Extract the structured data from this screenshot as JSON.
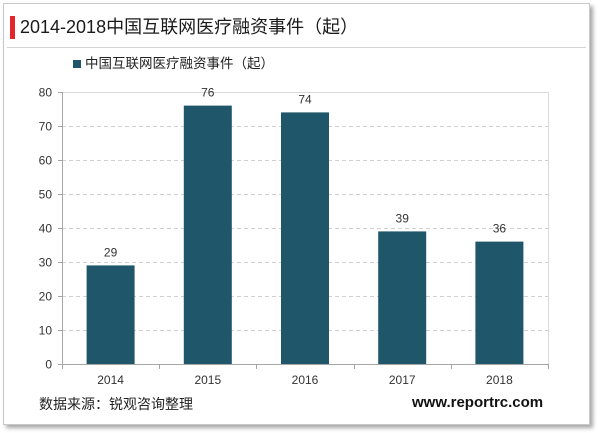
{
  "chart_data": {
    "type": "bar",
    "title": "2014-2018中国互联网医疗融资事件（起）",
    "categories": [
      "2014",
      "2015",
      "2016",
      "2017",
      "2018"
    ],
    "series": [
      {
        "name": "中国互联网医疗融资事件（起）",
        "values": [
          29,
          76,
          74,
          39,
          36
        ],
        "color": "#1f566a"
      }
    ],
    "ylim": [
      0,
      80
    ],
    "yticks": [
      0,
      10,
      20,
      30,
      40,
      50,
      60,
      70,
      80
    ],
    "grid": true,
    "legend": "top-left",
    "data_labels": true
  },
  "footer": {
    "source": "数据来源：锐观咨询整理",
    "website": "www.reportrc.com"
  },
  "colors": {
    "accent": "#e3262b"
  }
}
